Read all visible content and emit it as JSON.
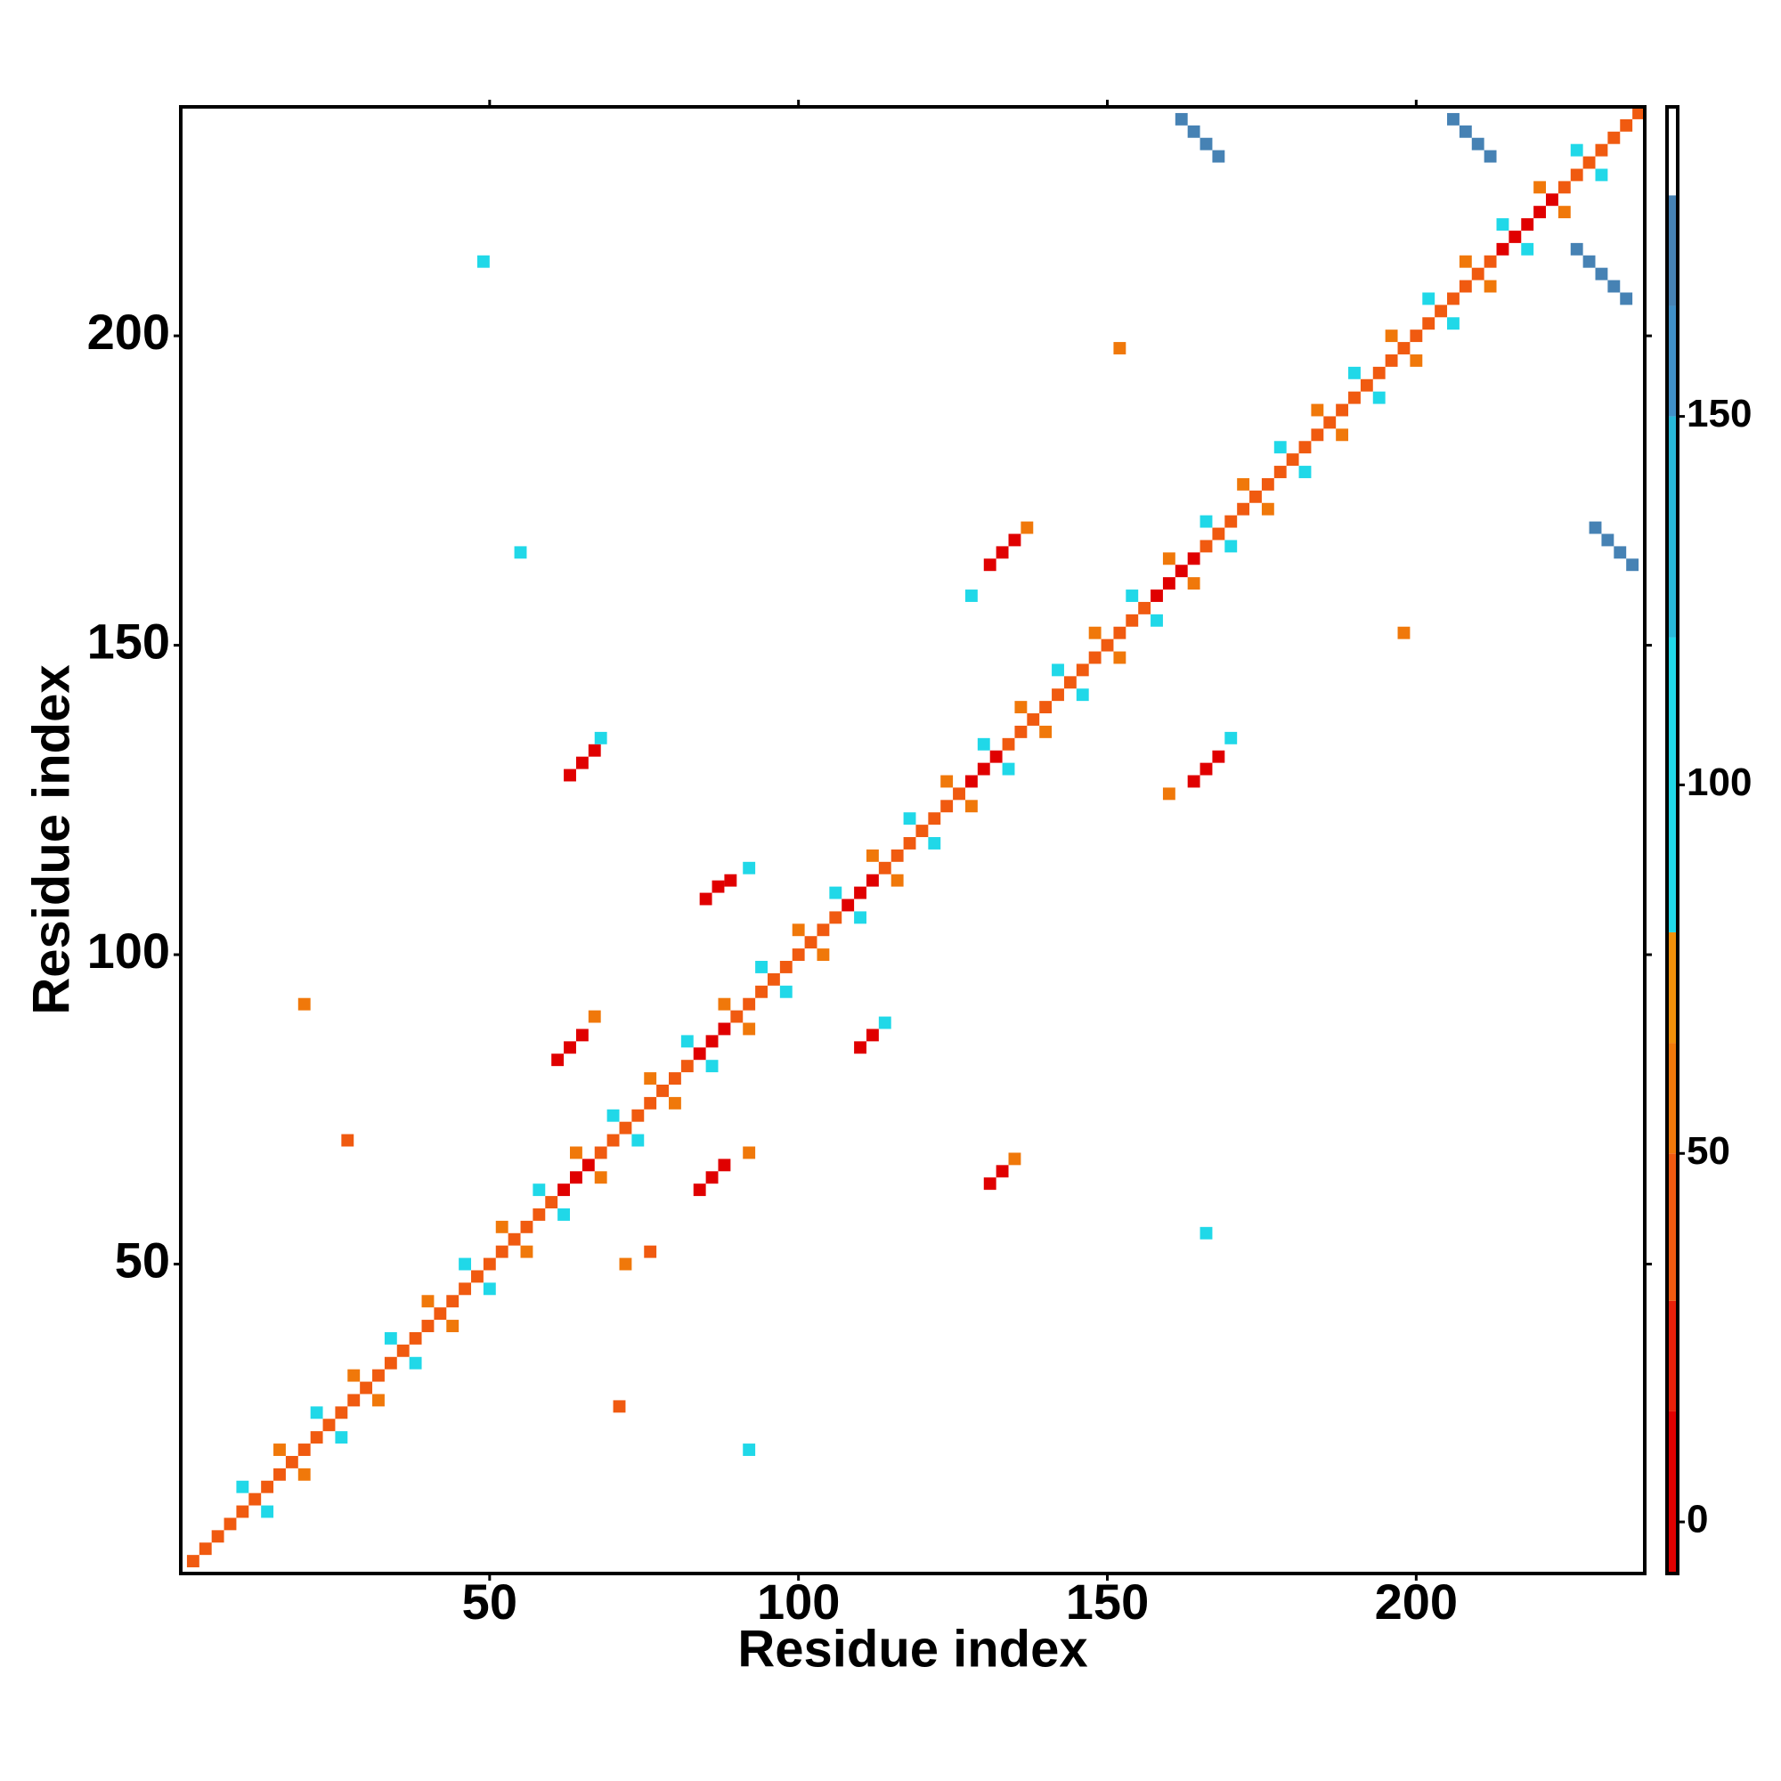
{
  "chart_data": {
    "type": "heatmap",
    "xlabel": "Residue index",
    "ylabel": "Residue index",
    "xlim": [
      0,
      237
    ],
    "ylim": [
      0,
      237
    ],
    "xticks": [
      50,
      100,
      150,
      200
    ],
    "yticks": [
      50,
      100,
      150,
      200
    ],
    "clim": [
      -7,
      192
    ],
    "cticks": [
      0,
      50,
      100,
      150
    ],
    "colorscale": [
      {
        "value": -7,
        "color": "#e00000"
      },
      {
        "value": 15,
        "color": "#e8200a"
      },
      {
        "value": 30,
        "color": "#f05a10"
      },
      {
        "value": 50,
        "color": "#f0780a"
      },
      {
        "value": 65,
        "color": "#f0900a"
      },
      {
        "value": 80,
        "color": "#20d8e8"
      },
      {
        "value": 120,
        "color": "#28b8d8"
      },
      {
        "value": 150,
        "color": "#4090c8"
      },
      {
        "value": 165,
        "color": "#4682b4"
      },
      {
        "value": 180,
        "color": "#ffffff"
      }
    ],
    "x": [
      2,
      4,
      6,
      8,
      10,
      12,
      14,
      16,
      18,
      20,
      22,
      24,
      26,
      28,
      30,
      32,
      34,
      36,
      38,
      40,
      42,
      44,
      46,
      48,
      50,
      52,
      54,
      56,
      58,
      60,
      62,
      64,
      66,
      68,
      70,
      72,
      74,
      76,
      78,
      80,
      82,
      84,
      86,
      88,
      90,
      92,
      94,
      96,
      98,
      100,
      102,
      104,
      106,
      108,
      110,
      112,
      114,
      116,
      118,
      120,
      122,
      124,
      126,
      128,
      130,
      132,
      134,
      136,
      138,
      140,
      142,
      144,
      146,
      148,
      150,
      152,
      154,
      156,
      158,
      160,
      162,
      164,
      166,
      168,
      170,
      172,
      174,
      176,
      178,
      180,
      182,
      184,
      186,
      188,
      190,
      192,
      194,
      196,
      198,
      200,
      202,
      204,
      206,
      208,
      210,
      212,
      214,
      216,
      218,
      220,
      222,
      224,
      226,
      228,
      230,
      232,
      234,
      236,
      10,
      14,
      16,
      20,
      22,
      26,
      28,
      32,
      34,
      38,
      40,
      44,
      46,
      50,
      52,
      56,
      58,
      62,
      64,
      68,
      70,
      74,
      76,
      80,
      82,
      86,
      88,
      92,
      94,
      98,
      100,
      104,
      106,
      110,
      112,
      116,
      118,
      122,
      124,
      128,
      130,
      134,
      136,
      140,
      142,
      146,
      148,
      152,
      154,
      158,
      160,
      164,
      166,
      170,
      172,
      176,
      178,
      182,
      184,
      188,
      190,
      194,
      196,
      200,
      202,
      206,
      208,
      212,
      214,
      218,
      220,
      224,
      226,
      230,
      63,
      65,
      67,
      68,
      85,
      87,
      89,
      92,
      61,
      63,
      65,
      67,
      84,
      86,
      88,
      92,
      110,
      112,
      114,
      131,
      133,
      135,
      131,
      133,
      135,
      137,
      128,
      164,
      166,
      168,
      170,
      160,
      162,
      164,
      166,
      168,
      206,
      208,
      210,
      212,
      226,
      228,
      230,
      232,
      234,
      229,
      231,
      233,
      235,
      152,
      198,
      20,
      27,
      71,
      92,
      49,
      55,
      72,
      76,
      166
    ],
    "y": [
      2,
      4,
      6,
      8,
      10,
      12,
      14,
      16,
      18,
      20,
      22,
      24,
      26,
      28,
      30,
      32,
      34,
      36,
      38,
      40,
      42,
      44,
      46,
      48,
      50,
      52,
      54,
      56,
      58,
      60,
      62,
      64,
      66,
      68,
      70,
      72,
      74,
      76,
      78,
      80,
      82,
      84,
      86,
      88,
      90,
      92,
      94,
      96,
      98,
      100,
      102,
      104,
      106,
      108,
      110,
      112,
      114,
      116,
      118,
      120,
      122,
      124,
      126,
      128,
      130,
      132,
      134,
      136,
      138,
      140,
      142,
      144,
      146,
      148,
      150,
      152,
      154,
      156,
      158,
      160,
      162,
      164,
      166,
      168,
      170,
      172,
      174,
      176,
      178,
      180,
      182,
      184,
      186,
      188,
      190,
      192,
      194,
      196,
      198,
      200,
      202,
      204,
      206,
      208,
      210,
      212,
      214,
      216,
      218,
      220,
      222,
      224,
      226,
      228,
      230,
      232,
      234,
      236,
      14,
      10,
      20,
      16,
      26,
      22,
      32,
      28,
      38,
      34,
      44,
      40,
      50,
      46,
      56,
      52,
      62,
      58,
      68,
      64,
      74,
      70,
      80,
      76,
      86,
      82,
      92,
      88,
      98,
      94,
      104,
      100,
      110,
      106,
      116,
      112,
      122,
      118,
      128,
      124,
      134,
      130,
      140,
      136,
      146,
      142,
      152,
      148,
      158,
      154,
      164,
      160,
      170,
      166,
      176,
      172,
      182,
      178,
      188,
      184,
      194,
      190,
      200,
      196,
      206,
      202,
      212,
      208,
      218,
      214,
      224,
      220,
      230,
      226,
      129,
      131,
      133,
      135,
      109,
      111,
      112,
      114,
      83,
      85,
      87,
      90,
      62,
      64,
      66,
      68,
      85,
      87,
      89,
      63,
      65,
      67,
      163,
      165,
      167,
      169,
      158,
      128,
      130,
      132,
      135,
      126,
      235,
      233,
      231,
      229,
      235,
      233,
      231,
      229,
      214,
      212,
      210,
      208,
      206,
      169,
      167,
      165,
      163,
      198,
      152,
      92,
      70,
      27,
      20,
      212,
      165,
      50,
      52,
      55
    ],
    "values": [
      45,
      45,
      45,
      45,
      45,
      45,
      45,
      45,
      45,
      45,
      45,
      45,
      45,
      45,
      45,
      45,
      45,
      45,
      45,
      45,
      45,
      45,
      45,
      45,
      45,
      45,
      45,
      45,
      45,
      45,
      10,
      10,
      10,
      45,
      45,
      45,
      45,
      45,
      45,
      45,
      45,
      10,
      10,
      10,
      45,
      45,
      45,
      45,
      45,
      45,
      45,
      45,
      45,
      10,
      10,
      10,
      45,
      45,
      45,
      45,
      45,
      45,
      45,
      10,
      10,
      10,
      45,
      45,
      45,
      45,
      45,
      45,
      45,
      45,
      45,
      45,
      45,
      45,
      10,
      10,
      10,
      10,
      45,
      45,
      45,
      45,
      45,
      45,
      45,
      45,
      45,
      45,
      45,
      45,
      45,
      45,
      45,
      45,
      45,
      45,
      45,
      45,
      45,
      45,
      45,
      45,
      10,
      10,
      10,
      10,
      10,
      45,
      45,
      45,
      45,
      45,
      45,
      45,
      90,
      90,
      60,
      60,
      90,
      90,
      60,
      60,
      90,
      90,
      60,
      60,
      90,
      90,
      60,
      60,
      90,
      90,
      60,
      60,
      90,
      90,
      60,
      60,
      90,
      90,
      60,
      60,
      90,
      90,
      60,
      60,
      90,
      90,
      60,
      60,
      90,
      90,
      60,
      60,
      90,
      90,
      60,
      60,
      90,
      90,
      60,
      60,
      90,
      90,
      60,
      60,
      90,
      90,
      60,
      60,
      90,
      90,
      60,
      60,
      90,
      90,
      60,
      60,
      90,
      90,
      60,
      60,
      90,
      90,
      60,
      60,
      90,
      90,
      10,
      10,
      10,
      90,
      10,
      10,
      10,
      90,
      10,
      10,
      10,
      60,
      10,
      10,
      10,
      60,
      10,
      10,
      90,
      10,
      10,
      60,
      10,
      10,
      10,
      60,
      90,
      10,
      10,
      10,
      90,
      60,
      165,
      165,
      165,
      165,
      165,
      165,
      165,
      165,
      165,
      165,
      165,
      165,
      165,
      165,
      165,
      165,
      165,
      60,
      60,
      60,
      40,
      40,
      90,
      90,
      90,
      60,
      40,
      90
    ]
  }
}
